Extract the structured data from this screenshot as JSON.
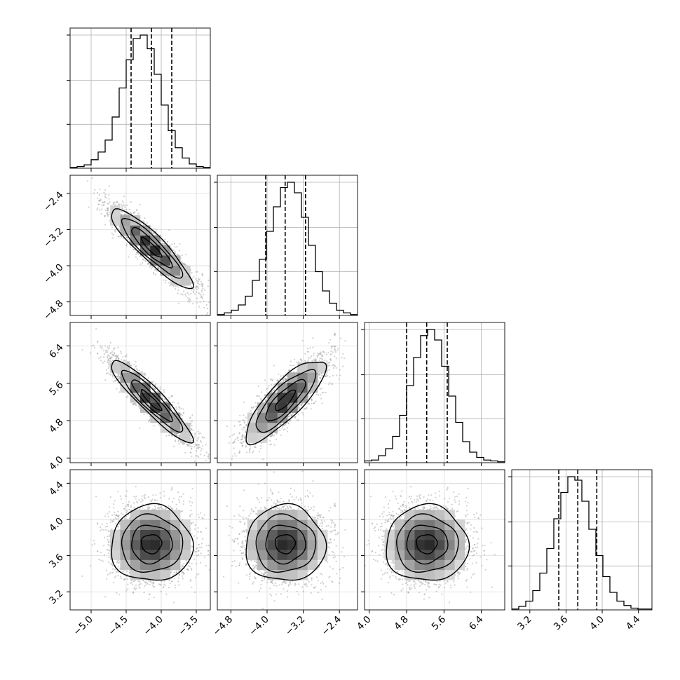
{
  "chart_data": {
    "type": "corner",
    "parameters": [
      {
        "key": "p0",
        "range": [
          -5.3,
          -3.3
        ],
        "ticks": [
          -5.0,
          -4.5,
          -4.0,
          -3.5
        ],
        "tick_labels": [
          "−5.0",
          "−4.5",
          "−4.0",
          "−3.5"
        ],
        "quantiles": [
          -4.43,
          -4.14,
          -3.85
        ]
      },
      {
        "key": "p1",
        "range": [
          -5.1,
          -2.0
        ],
        "ticks": [
          -4.8,
          -4.0,
          -3.2,
          -2.4
        ],
        "tick_labels": [
          "−4.8",
          "−4.0",
          "−3.2",
          "−2.4"
        ],
        "quantiles": [
          -4.03,
          -3.6,
          -3.15
        ]
      },
      {
        "key": "p2",
        "range": [
          3.9,
          6.9
        ],
        "ticks": [
          4.0,
          4.8,
          5.6,
          6.4
        ],
        "tick_labels": [
          "4.0",
          "4.8",
          "5.6",
          "6.4"
        ],
        "quantiles": [
          4.8,
          5.23,
          5.67
        ]
      },
      {
        "key": "p3",
        "range": [
          3.0,
          4.55
        ],
        "ticks": [
          3.2,
          3.6,
          4.0,
          4.4
        ],
        "tick_labels": [
          "3.2",
          "3.6",
          "4.0",
          "4.4"
        ],
        "quantiles": [
          3.52,
          3.73,
          3.94
        ]
      }
    ],
    "histograms": [
      {
        "param": 0,
        "edges_from": -5.3,
        "bin_width": 0.1,
        "counts": [
          1,
          2,
          4,
          10,
          19,
          33,
          60,
          94,
          127,
          152,
          156,
          140,
          110,
          74,
          44,
          24,
          12,
          5,
          2,
          1
        ]
      },
      {
        "param": 1,
        "edges_from": -5.1,
        "bin_width": 0.155,
        "counts": [
          1,
          3,
          6,
          12,
          22,
          40,
          64,
          96,
          124,
          146,
          152,
          140,
          112,
          80,
          50,
          28,
          14,
          6,
          3,
          1
        ]
      },
      {
        "param": 2,
        "edges_from": 3.9,
        "bin_width": 0.15,
        "counts": [
          2,
          3,
          8,
          16,
          30,
          54,
          88,
          120,
          145,
          152,
          140,
          110,
          76,
          46,
          24,
          12,
          6,
          3,
          2,
          1
        ]
      },
      {
        "param": 3,
        "edges_from": 3.0,
        "bin_width": 0.0775,
        "counts": [
          1,
          4,
          10,
          22,
          42,
          70,
          104,
          134,
          152,
          148,
          124,
          92,
          62,
          38,
          20,
          10,
          5,
          2,
          1,
          1
        ]
      }
    ],
    "pair_distributions": [
      {
        "x": 0,
        "y": 1,
        "mean": [
          -4.14,
          -3.6
        ],
        "sd": [
          0.29,
          0.44
        ],
        "correlation": -0.9
      },
      {
        "x": 0,
        "y": 2,
        "mean": [
          -4.14,
          5.23
        ],
        "sd": [
          0.29,
          0.44
        ],
        "correlation": -0.92
      },
      {
        "x": 1,
        "y": 2,
        "mean": [
          -3.6,
          5.23
        ],
        "sd": [
          0.44,
          0.44
        ],
        "correlation": 0.82
      },
      {
        "x": 0,
        "y": 3,
        "mean": [
          -4.14,
          3.73
        ],
        "sd": [
          0.29,
          0.21
        ],
        "correlation": 0.0
      },
      {
        "x": 1,
        "y": 3,
        "mean": [
          -3.6,
          3.73
        ],
        "sd": [
          0.44,
          0.21
        ],
        "correlation": 0.0
      },
      {
        "x": 2,
        "y": 3,
        "mean": [
          5.23,
          3.73
        ],
        "sd": [
          0.44,
          0.21
        ],
        "correlation": 0.0
      }
    ],
    "contour_levels_sigma": [
      0.5,
      1.0,
      1.5,
      2.0
    ],
    "grid": true,
    "colors": {
      "line": "#000000",
      "grid": "#b0b0b0",
      "points": "#9a9a9a"
    }
  }
}
